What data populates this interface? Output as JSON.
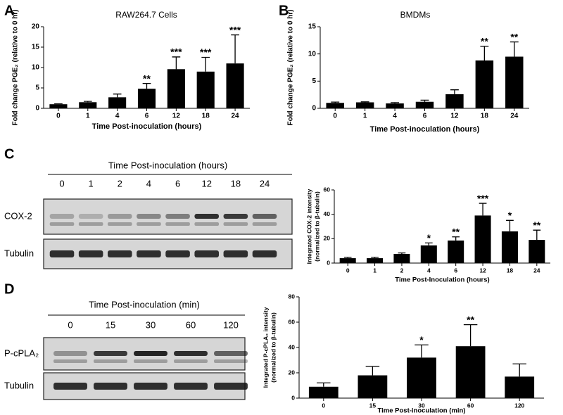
{
  "panels": [
    "A",
    "B",
    "C",
    "D"
  ],
  "blots": [
    {
      "title": "Time Post-inoculation (hours)",
      "lanes": [
        "0",
        "1",
        "2",
        "4",
        "6",
        "12",
        "18",
        "24"
      ],
      "rows": [
        "COX-2",
        "Tubulin"
      ]
    },
    {
      "title": "Time Post-inoculation (min)",
      "lanes": [
        "0",
        "15",
        "30",
        "60",
        "120"
      ],
      "rows": [
        "P-cPLA₂",
        "Tubulin"
      ]
    }
  ],
  "chart_data": [
    {
      "type": "bar",
      "title": "RAW264.7 Cells",
      "ylabel": [
        "Fold change PGE₂ (relative to 0 hr)"
      ],
      "xlabel": "Time Post-inoculation (hours)",
      "categories": [
        "0",
        "1",
        "4",
        "6",
        "12",
        "18",
        "24"
      ],
      "values": [
        1,
        1.5,
        2.7,
        4.8,
        9.6,
        9.0,
        11.0
      ],
      "errors": [
        0.1,
        0.2,
        0.8,
        1.3,
        3.0,
        3.5,
        7.0
      ],
      "annotations": [
        null,
        null,
        null,
        "**",
        "***",
        "***",
        "***"
      ],
      "color": "#000000",
      "ylim": [
        0,
        20
      ],
      "yticks": [
        0,
        5,
        10,
        15,
        20
      ]
    },
    {
      "type": "bar",
      "title": "BMDMs",
      "ylabel": [
        "Fold change PGE₂ (relative to 0 hr)"
      ],
      "xlabel": "Time Post-inoculation (hours)",
      "categories": [
        "0",
        "1",
        "4",
        "6",
        "12",
        "18",
        "24"
      ],
      "values": [
        1,
        1.1,
        0.9,
        1.2,
        2.6,
        8.8,
        9.5
      ],
      "errors": [
        0.15,
        0.1,
        0.15,
        0.3,
        0.8,
        2.6,
        2.7
      ],
      "annotations": [
        null,
        null,
        null,
        null,
        null,
        "**",
        "**"
      ],
      "color": "#000000",
      "ylim": [
        0,
        15
      ],
      "yticks": [
        0,
        5,
        10,
        15
      ]
    },
    {
      "type": "bar",
      "ylabel": [
        "Integrated COX-2 intensity",
        "(normalized to β-tubulin)"
      ],
      "xlabel": "Time Post-Inoculation (hours)",
      "categories": [
        "0",
        "1",
        "2",
        "4",
        "6",
        "12",
        "18",
        "24"
      ],
      "values": [
        4,
        4,
        7.5,
        14.5,
        18.5,
        39,
        26,
        19
      ],
      "errors": [
        0.7,
        0.7,
        0.8,
        2,
        3,
        10,
        9,
        8
      ],
      "annotations": [
        null,
        null,
        null,
        "*",
        "**",
        "***",
        "*",
        "**"
      ],
      "color": "#000000",
      "ylim": [
        0,
        60
      ],
      "yticks": [
        0,
        20,
        40,
        60
      ]
    },
    {
      "type": "bar",
      "ylabel": [
        "Integrated P-cPLA₂ intensity",
        "(normalized to β-tubulin)"
      ],
      "xlabel": "Time Post-inoculation (min)",
      "categories": [
        "0",
        "15",
        "30",
        "60",
        "120"
      ],
      "values": [
        9,
        18,
        32,
        41,
        17
      ],
      "errors": [
        3,
        7,
        10,
        17,
        10
      ],
      "annotations": [
        null,
        null,
        "*",
        "**",
        null
      ],
      "color": "#000000",
      "ylim": [
        0,
        80
      ],
      "yticks": [
        0,
        20,
        40,
        60,
        80
      ]
    }
  ]
}
